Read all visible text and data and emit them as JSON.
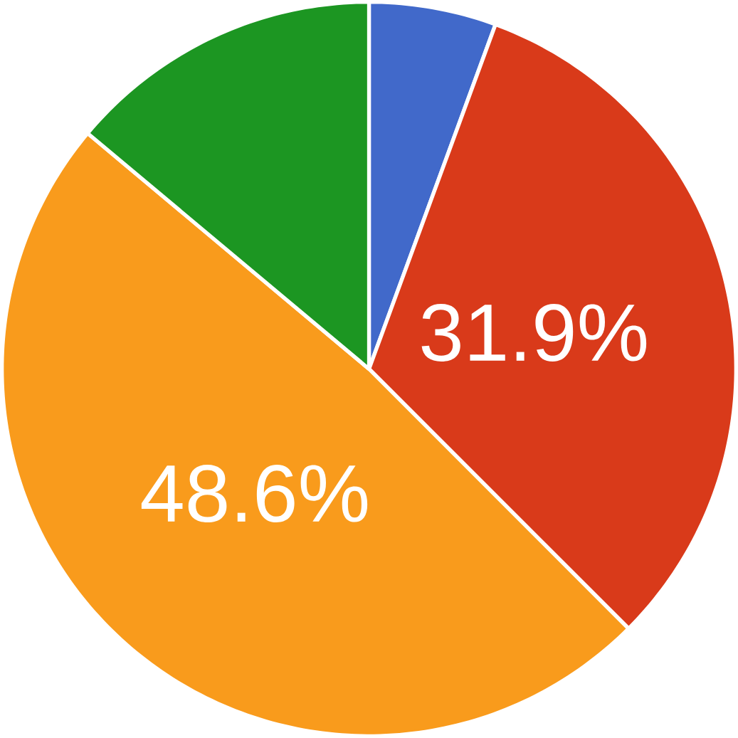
{
  "chart_data": {
    "type": "pie",
    "categories": [
      null,
      null,
      null,
      null
    ],
    "values": [
      5.6,
      31.9,
      48.6,
      13.9
    ],
    "colors": [
      "#4169ca",
      "#d93a1a",
      "#f99b1c",
      "#1c9622"
    ],
    "value_labels": [
      null,
      "31.9%",
      "48.6%",
      null
    ]
  }
}
